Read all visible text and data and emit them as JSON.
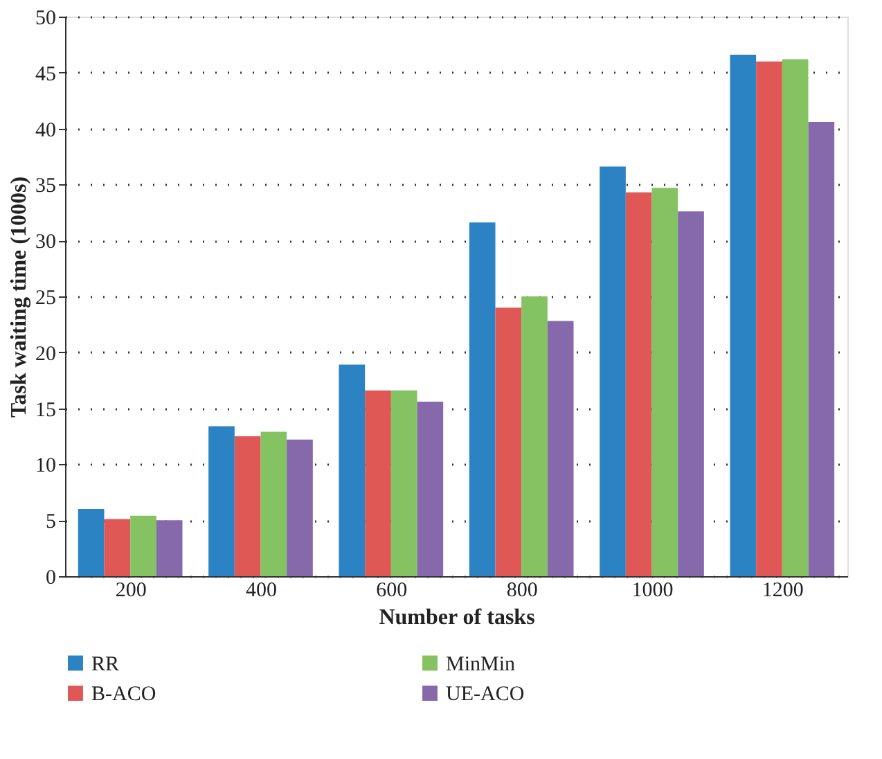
{
  "chart_data": {
    "type": "bar",
    "xlabel": "Number of tasks",
    "ylabel": "Task waiting time (1000s)",
    "categories": [
      "200",
      "400",
      "600",
      "800",
      "1000",
      "1200"
    ],
    "series": [
      {
        "name": "RR",
        "color": "#2b83c3",
        "values": [
          6.0,
          13.4,
          18.9,
          31.6,
          36.6,
          46.6
        ]
      },
      {
        "name": "B-ACO",
        "color": "#df5856",
        "values": [
          5.1,
          12.5,
          16.6,
          24.0,
          34.3,
          46.0
        ]
      },
      {
        "name": "MinMin",
        "color": "#84c262",
        "values": [
          5.4,
          12.9,
          16.6,
          25.0,
          34.7,
          46.2
        ]
      },
      {
        "name": "UE-ACO",
        "color": "#8669ab",
        "values": [
          5.0,
          12.2,
          15.6,
          22.8,
          32.6,
          40.6
        ]
      }
    ],
    "ylim": [
      0,
      50
    ],
    "yticks": [
      0,
      5,
      10,
      15,
      20,
      25,
      30,
      35,
      40,
      45,
      50
    ],
    "grid": "y",
    "legend": "bottom"
  }
}
